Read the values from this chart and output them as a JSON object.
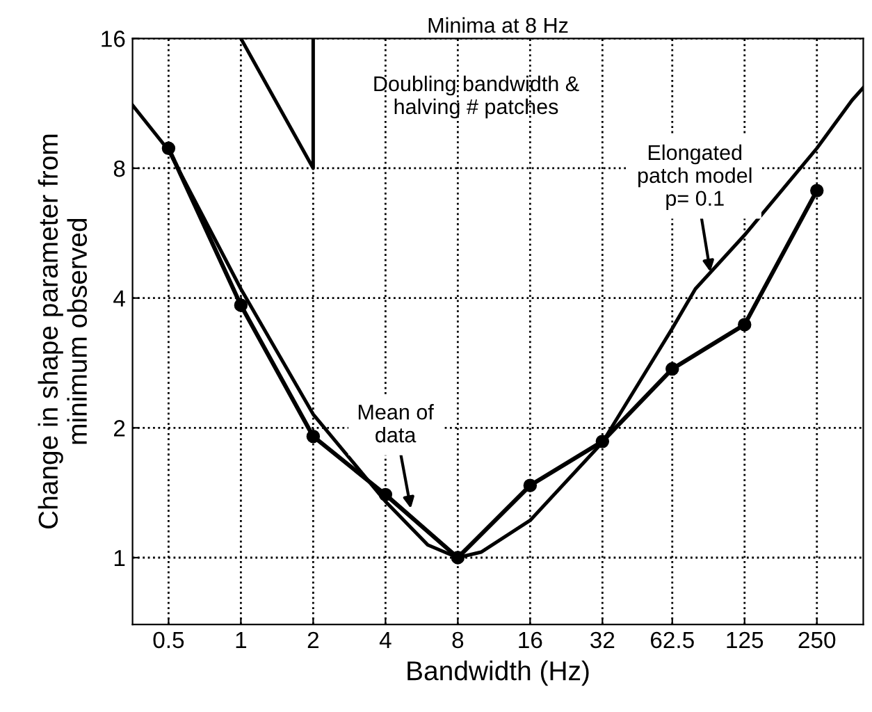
{
  "chart_data": {
    "type": "line",
    "title": "Minima at 8 Hz",
    "xlabel": "Bandwidth (Hz)",
    "ylabel": "Change in shape parameter from\nminimum observed",
    "log": "xy",
    "grid": true,
    "legend": false,
    "xlim": [
      0.354,
      390
    ],
    "xticks": [
      0.5,
      1,
      2,
      4,
      8,
      16,
      32,
      62.5,
      125,
      250
    ],
    "ylim": [
      0.7,
      16
    ],
    "yticks": [
      1,
      2,
      4,
      8,
      16
    ],
    "series": [
      {
        "color": "#000000",
        "marker": "circle",
        "x": [
          0.5,
          1,
          2,
          4,
          8,
          16,
          32,
          62.5,
          125,
          250
        ],
        "values": [
          8.9,
          3.85,
          1.91,
          1.4,
          1.0,
          1.47,
          1.86,
          2.74,
          3.47,
          7.1
        ]
      },
      {
        "color": "#000000",
        "marker": "none",
        "x": [
          0.354,
          0.5,
          1,
          2,
          4,
          6,
          8,
          10,
          16,
          32,
          62.5,
          78,
          125,
          250,
          350,
          390
        ],
        "values": [
          11.2,
          8.8,
          4.2,
          2.15,
          1.35,
          1.07,
          1.0,
          1.03,
          1.22,
          1.85,
          3.4,
          4.2,
          5.6,
          8.9,
          11.5,
          12.3
        ]
      },
      {
        "color": "#000000",
        "marker": "none",
        "x": [
          1,
          2,
          2
        ],
        "values": [
          16,
          8,
          16
        ]
      }
    ],
    "annotations": [
      "Doubling bandwidth &\nhalving # patches",
      {
        "text": "Elongated\npatch model\np= 0.1",
        "x": 90,
        "y": 4.6
      },
      {
        "text": "Mean of\ndata",
        "x": 5.1,
        "y": 1.3
      }
    ]
  }
}
